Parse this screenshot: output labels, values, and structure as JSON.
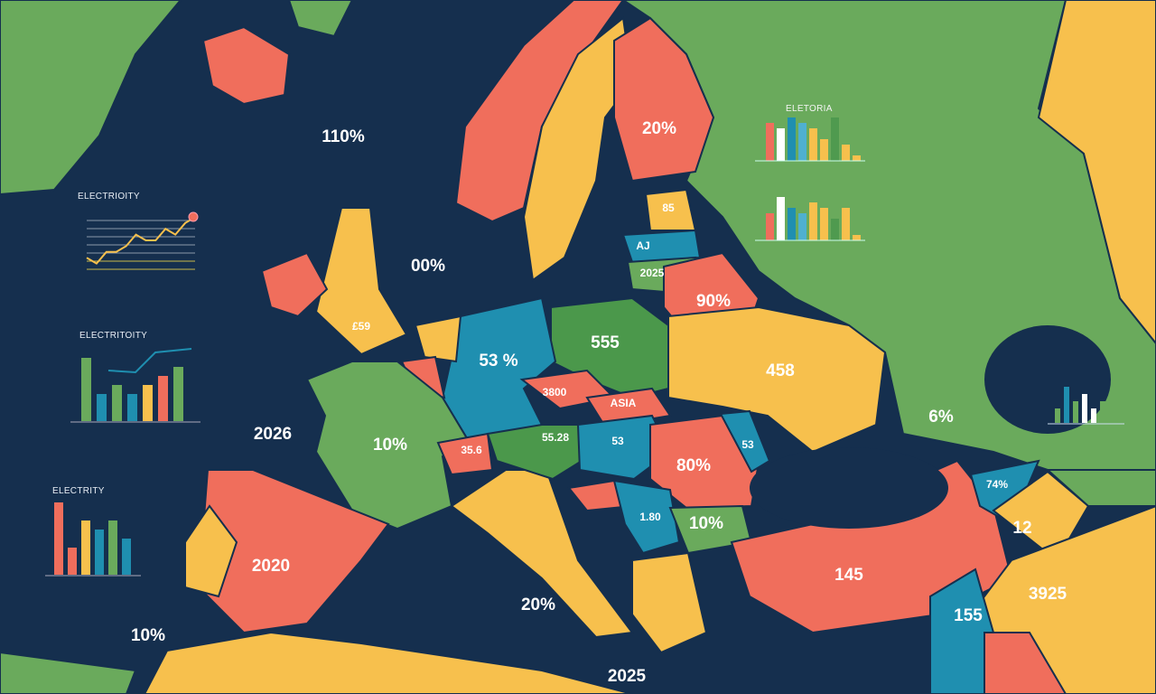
{
  "colors": {
    "sea": "#152f4e",
    "green": "#6aaa5c",
    "dark_green": "#4b984b",
    "yellow": "#f7c04d",
    "red": "#f06e5c",
    "blue": "#1f8fb0",
    "white": "#ffffff"
  },
  "labels": {
    "iceland_sea": "110%",
    "north_sea": "00%",
    "atlantic": "2026",
    "southwest": "10%",
    "finland": "20%",
    "baltic1": "85",
    "baltic2": "2025",
    "baltic3": "AJ",
    "belarus": "90%",
    "uk": "£59",
    "germany": "53 %",
    "poland": "555",
    "ukraine": "458",
    "czech": "3800",
    "slovakia": "ASIA",
    "austria": "55.28",
    "switzerland": "35.6",
    "hungary": "53",
    "moldova": "53",
    "france": "10%",
    "spain": "2020",
    "romania": "80%",
    "serbia": "1.80",
    "bulgaria": "10%",
    "italy": "20%",
    "turkey": "145",
    "caucasus": "74%",
    "caucasus2": "12",
    "iran": "3925",
    "iraq": "155",
    "mediterranean": "2025",
    "russia": "6%"
  },
  "charts": [
    {
      "title": "ELECTRIOITY",
      "type": "line",
      "values": [
        2,
        1,
        3,
        3,
        4,
        6,
        5,
        5,
        7,
        6,
        8,
        9
      ]
    },
    {
      "title": "ELECTRITOITY",
      "type": "bar+line",
      "values": [
        7,
        3,
        4,
        3,
        4,
        5,
        6
      ],
      "line": [
        3,
        4,
        5,
        6,
        6
      ]
    },
    {
      "title": "ELECTRITY",
      "type": "bar",
      "values": [
        8,
        3,
        6,
        5,
        6,
        4
      ]
    },
    {
      "title": "ELETORIA",
      "type": "bar",
      "values": [
        7,
        6,
        8,
        7,
        6,
        4,
        8,
        3,
        1
      ]
    },
    {
      "title": "",
      "type": "bar",
      "values": [
        5,
        8,
        6,
        5,
        7,
        6,
        4,
        6,
        1
      ]
    },
    {
      "title": "",
      "type": "bar",
      "values": [
        2,
        5,
        3,
        4,
        2,
        3,
        2
      ]
    }
  ]
}
